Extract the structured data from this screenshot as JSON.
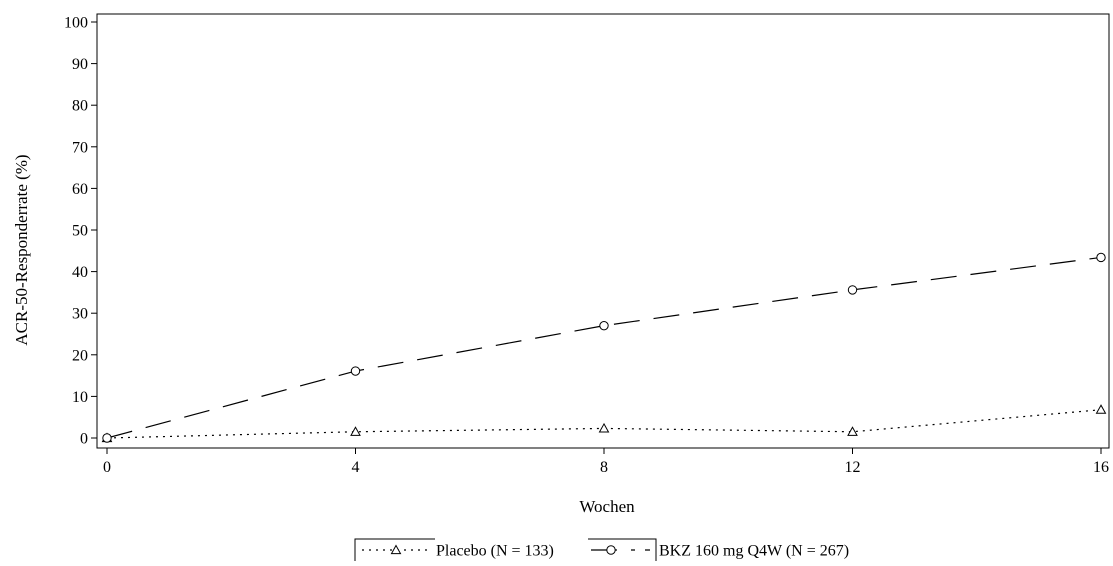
{
  "chart_data": {
    "type": "line",
    "title": "",
    "xlabel": "Wochen",
    "ylabel": "ACR-50-Responderrate (%)",
    "xlim": [
      0,
      16
    ],
    "ylim": [
      0,
      100
    ],
    "x_ticks": [
      0,
      4,
      8,
      12,
      16
    ],
    "y_ticks": [
      0,
      10,
      20,
      30,
      40,
      50,
      60,
      70,
      80,
      90,
      100
    ],
    "grid": false,
    "legend_position": "bottom",
    "x": [
      0,
      4,
      8,
      12,
      16
    ],
    "series": [
      {
        "name": "Placebo (N = 133)",
        "values": [
          0,
          1.5,
          2.3,
          1.5,
          6.8
        ],
        "marker": "triangle",
        "line_style": "dotted",
        "color": "#000000"
      },
      {
        "name": "BKZ 160 mg Q4W (N = 267)",
        "values": [
          0,
          16.1,
          27.0,
          35.6,
          43.4
        ],
        "marker": "circle",
        "line_style": "long-dash",
        "color": "#000000"
      }
    ]
  }
}
